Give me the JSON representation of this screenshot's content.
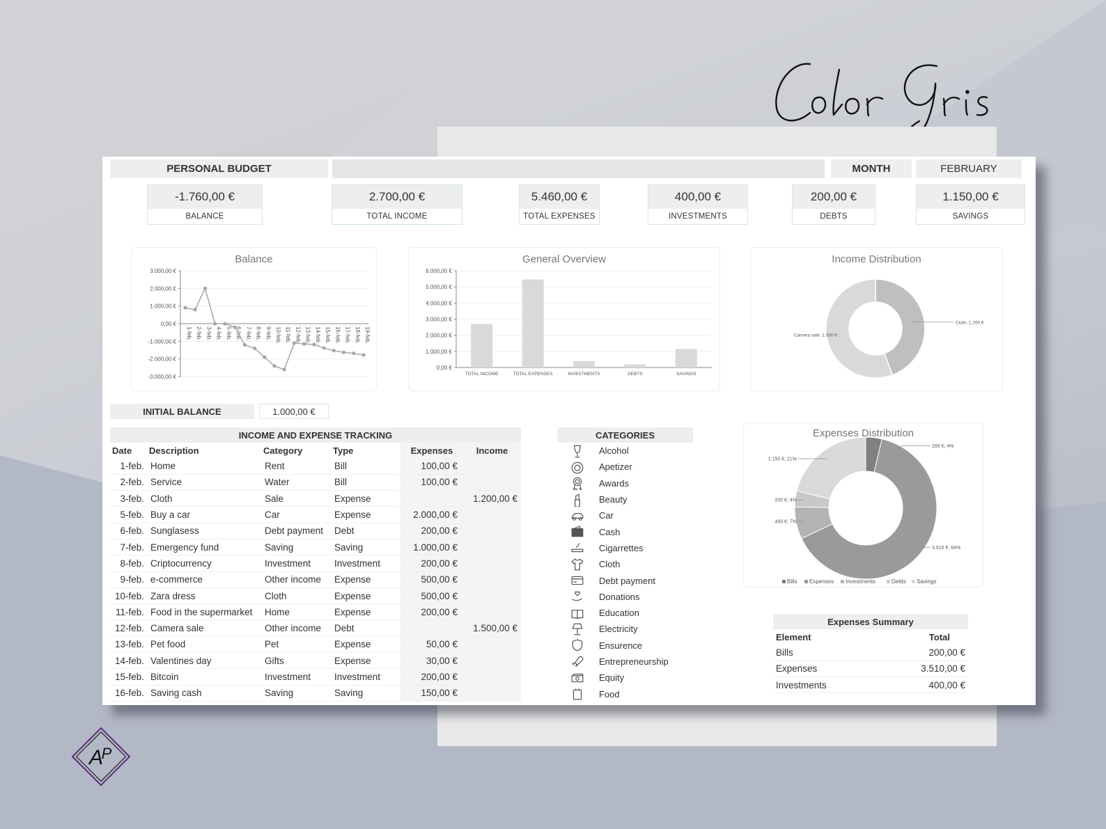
{
  "signature": "Color Gris",
  "logo_text": "AP",
  "header": {
    "title": "PERSONAL BUDGET",
    "month_label": "MONTH",
    "month_value": "FEBRUARY"
  },
  "kpis": {
    "balance": {
      "value": "-1.760,00 €",
      "label": "BALANCE"
    },
    "income": {
      "value": "2.700,00 €",
      "label": "TOTAL INCOME"
    },
    "expenses": {
      "value": "5.460,00 €",
      "label": "TOTAL EXPENSES"
    },
    "investments": {
      "value": "400,00 €",
      "label": "INVESTMENTS"
    },
    "debts": {
      "value": "200,00 €",
      "label": "DEBTS"
    },
    "savings": {
      "value": "1.150,00 €",
      "label": "SAVINGS"
    }
  },
  "initial_balance": {
    "label": "INITIAL BALANCE",
    "value": "1.000,00 €"
  },
  "chart_data": [
    {
      "type": "line",
      "title": "Balance",
      "x": [
        "1-feb.",
        "2-feb.",
        "3-feb.",
        "4-feb.",
        "5-feb.",
        "6-feb.",
        "7-feb.",
        "8-feb.",
        "9-feb.",
        "10-feb.",
        "11-feb.",
        "12-feb.",
        "13-feb.",
        "14-feb.",
        "15-feb.",
        "16-feb.",
        "17-feb.",
        "18-feb.",
        "19-feb."
      ],
      "values": [
        900,
        800,
        2000,
        0,
        0,
        -200,
        -1200,
        -1400,
        -1900,
        -2400,
        -2600,
        -1100,
        -1150,
        -1180,
        -1380,
        -1530,
        -1630,
        -1680,
        -1780
      ],
      "y_ticks": [
        "3.000,00 €",
        "2.000,00 €",
        "1.000,00 €",
        "0,00 €",
        "-1.000,00 €",
        "-2.000,00 €",
        "-3.000,00 €"
      ],
      "ylim": [
        -3000,
        3000
      ],
      "color": "#a6a6a6"
    },
    {
      "type": "bar",
      "title": "General Overview",
      "categories": [
        "TOTAL INCOME",
        "TOTAL EXPENSES",
        "INVESTMENTS",
        "DEBTS",
        "SAVINGS"
      ],
      "values": [
        2700,
        5460,
        400,
        200,
        1150
      ],
      "y_ticks": [
        "6.000,00 €",
        "5.000,00 €",
        "4.000,00 €",
        "3.000,00 €",
        "2.000,00 €",
        "1.000,00 €",
        "0,00 €"
      ],
      "ylim": [
        0,
        6000
      ],
      "color": "#d9d9d9"
    },
    {
      "type": "pie",
      "title": "Income Distribution",
      "slices": [
        {
          "label": "Cloth; 1.200 €",
          "value": 1200,
          "color": "#bfbfbf"
        },
        {
          "label": "Camera sale; 1.500 €",
          "value": 1500,
          "color": "#d9d9d9"
        }
      ]
    },
    {
      "type": "pie",
      "title": "Expenses Distribution",
      "slices": [
        {
          "label": "200 €; 4%",
          "name": "Bills",
          "value": 200,
          "color": "#7f7f7f"
        },
        {
          "label": "3.510 €; 64%",
          "name": "Expenses",
          "value": 3510,
          "color": "#9a9a9a"
        },
        {
          "label": "400 €; 7%",
          "name": "Investments",
          "value": 400,
          "color": "#b3b3b3"
        },
        {
          "label": "200 €; 4%",
          "name": "Debts",
          "value": 200,
          "color": "#c8c8c8"
        },
        {
          "label": "1.150 €; 21%",
          "name": "Savings",
          "value": 1150,
          "color": "#d9d9d9"
        }
      ],
      "legend": [
        "Bills",
        "Expenses",
        "Investments",
        "Debts",
        "Savings"
      ]
    }
  ],
  "tracking": {
    "title": "INCOME AND EXPENSE TRACKING",
    "columns": [
      "Date",
      "Description",
      "Category",
      "Type",
      "Expenses",
      "Income"
    ],
    "rows": [
      [
        "1-feb.",
        "Home",
        "Rent",
        "Bill",
        "100,00 €",
        ""
      ],
      [
        "2-feb.",
        "Service",
        "Water",
        "Bill",
        "100,00 €",
        ""
      ],
      [
        "3-feb.",
        "Cloth",
        "Sale",
        "Expense",
        "",
        "1.200,00 €"
      ],
      [
        "5-feb.",
        "Buy a car",
        "Car",
        "Expense",
        "2.000,00 €",
        ""
      ],
      [
        "6-feb.",
        "Sunglasess",
        "Debt payment",
        "Debt",
        "200,00 €",
        ""
      ],
      [
        "7-feb.",
        "Emergency fund",
        "Saving",
        "Saving",
        "1.000,00 €",
        ""
      ],
      [
        "8-feb.",
        "Criptocurrency",
        "Investment",
        "Investment",
        "200,00 €",
        ""
      ],
      [
        "9-feb.",
        "e-commerce",
        "Other income",
        "Expense",
        "500,00 €",
        ""
      ],
      [
        "10-feb.",
        "Zara dress",
        "Cloth",
        "Expense",
        "500,00 €",
        ""
      ],
      [
        "11-feb.",
        "Food in the supermarket",
        "Home",
        "Expense",
        "200,00 €",
        ""
      ],
      [
        "12-feb.",
        "Camera sale",
        "Other income",
        "Debt",
        "",
        "1.500,00 €"
      ],
      [
        "13-feb.",
        "Pet food",
        "Pet",
        "Expense",
        "50,00 €",
        ""
      ],
      [
        "14-feb.",
        "Valentines day",
        "Gifts",
        "Expense",
        "30,00 €",
        ""
      ],
      [
        "15-feb.",
        "Bitcoin",
        "Investment",
        "Investment",
        "200,00 €",
        ""
      ],
      [
        "16-feb.",
        "Saving cash",
        "Saving",
        "Saving",
        "150,00 €",
        ""
      ]
    ]
  },
  "categories": {
    "title": "CATEGORIES",
    "items": [
      {
        "name": "Alcohol",
        "icon": "wine-glass-icon"
      },
      {
        "name": "Apetizer",
        "icon": "plate-icon"
      },
      {
        "name": "Awards",
        "icon": "medal-icon"
      },
      {
        "name": "Beauty",
        "icon": "lipstick-icon"
      },
      {
        "name": "Car",
        "icon": "car-icon"
      },
      {
        "name": "Cash",
        "icon": "wallet-icon"
      },
      {
        "name": "Cigarrettes",
        "icon": "cigarette-icon"
      },
      {
        "name": "Cloth",
        "icon": "tshirt-icon"
      },
      {
        "name": "Debt payment",
        "icon": "credit-card-icon"
      },
      {
        "name": "Donations",
        "icon": "donation-hand-icon"
      },
      {
        "name": "Education",
        "icon": "book-icon"
      },
      {
        "name": "Electricity",
        "icon": "lamp-icon"
      },
      {
        "name": "Ensurence",
        "icon": "shield-icon"
      },
      {
        "name": "Entrepreneurship",
        "icon": "rocket-icon"
      },
      {
        "name": "Equity",
        "icon": "cash-stack-icon"
      },
      {
        "name": "Food",
        "icon": "food-bag-icon"
      }
    ]
  },
  "summary": {
    "title": "Expenses Summary",
    "columns": [
      "Element",
      "Total"
    ],
    "rows": [
      [
        "Bills",
        "200,00 €"
      ],
      [
        "Expenses",
        "3.510,00 €"
      ],
      [
        "Investments",
        "400,00 €"
      ]
    ]
  }
}
